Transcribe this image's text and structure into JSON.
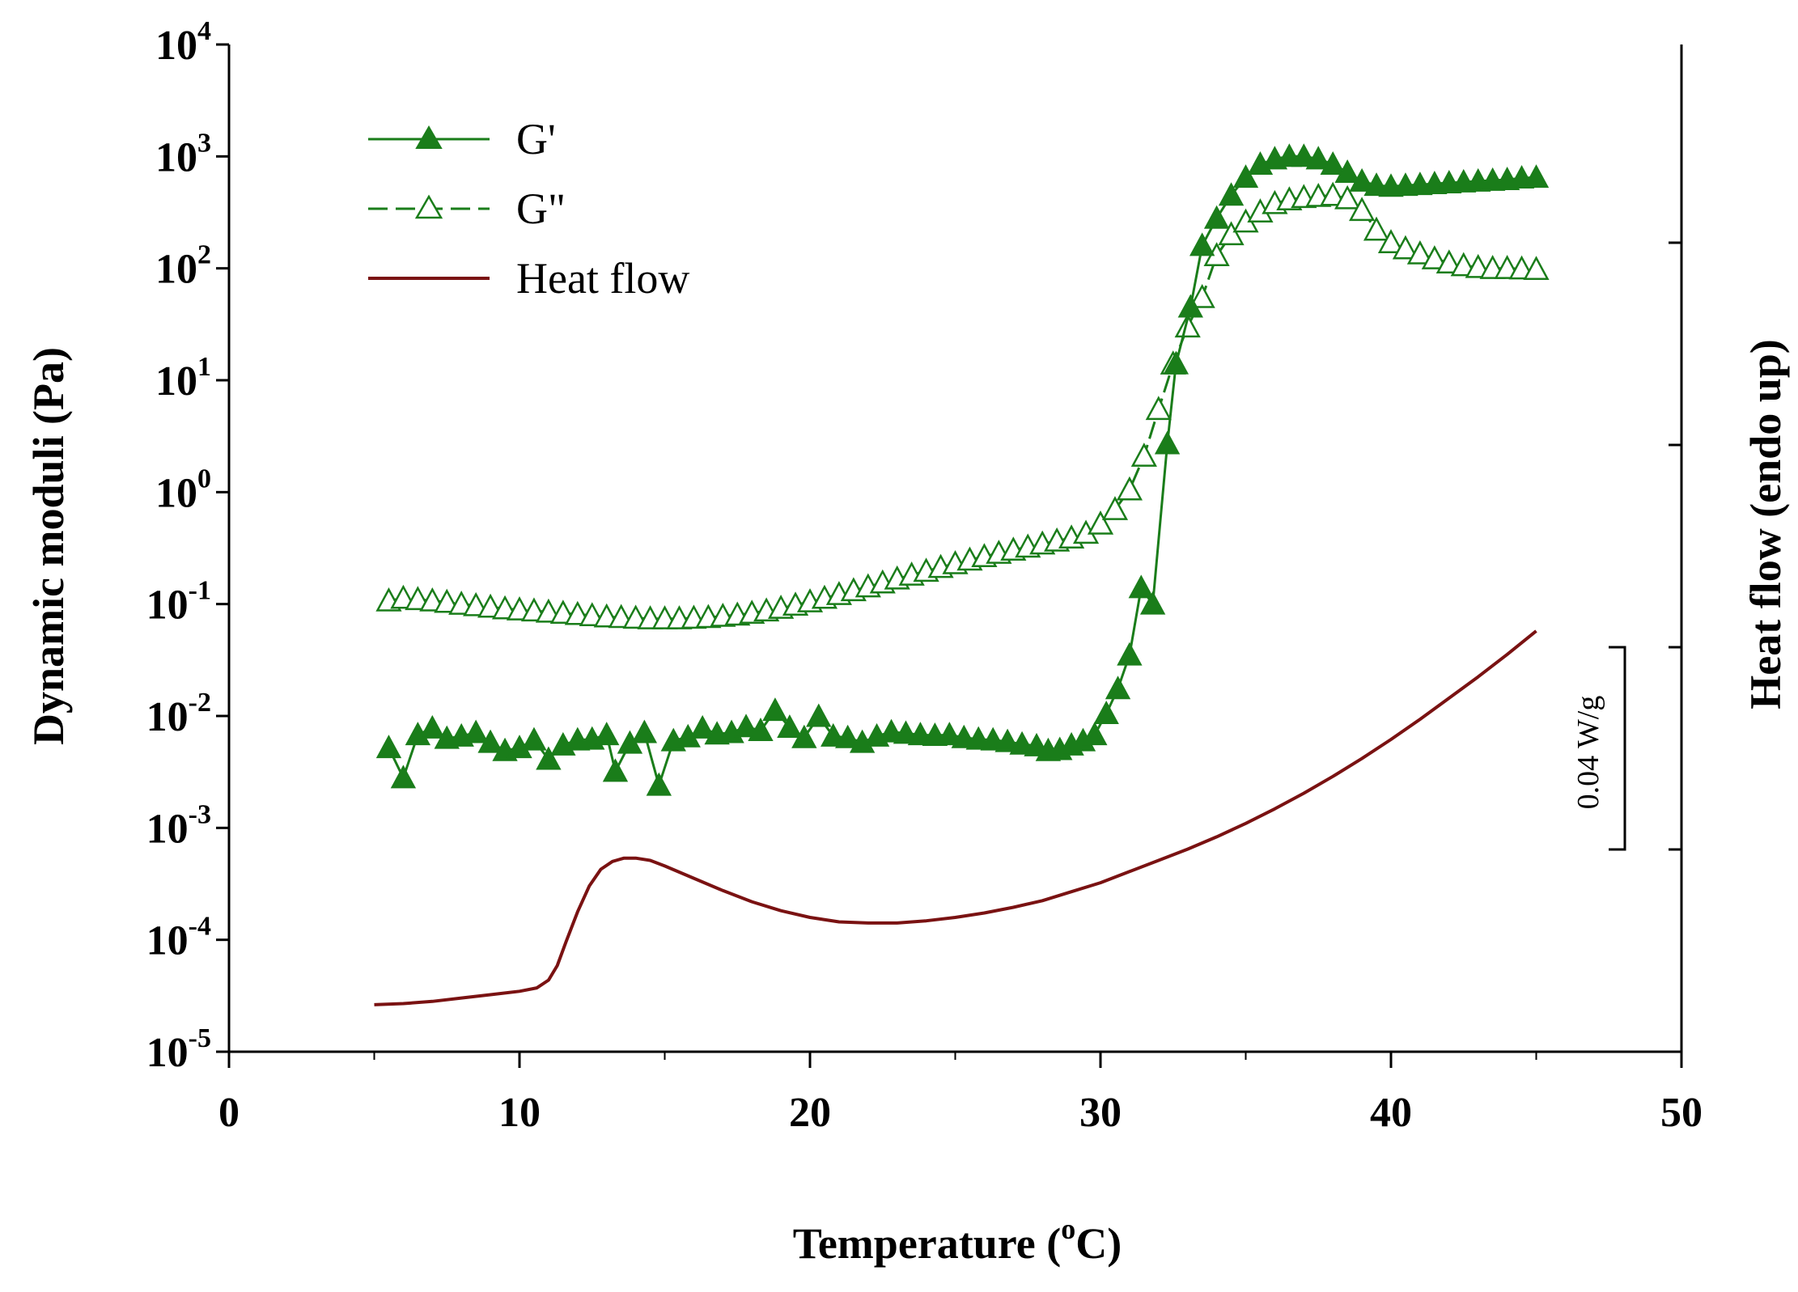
{
  "chart_data": {
    "type": "line",
    "title": "",
    "xlabel": "Temperature (",
    "xlabel_unit": "C)",
    "xlabel_degree": "o",
    "ylabel": "Dynamic moduli (Pa)",
    "y2label": "Heat flow (endo up)",
    "xlim": [
      0,
      50
    ],
    "x_ticks": [
      "0",
      "10",
      "20",
      "30",
      "40",
      "50"
    ],
    "y_scale": "log",
    "ylim_exponent": [
      -5,
      4
    ],
    "y_tick_base": "10",
    "y_tick_exponents": [
      "-5",
      "-4",
      "-3",
      "-2",
      "-1",
      "0",
      "1",
      "2",
      "3",
      "4"
    ],
    "scale_bar_label": "0.04 W/g",
    "colors": {
      "moduli": "#1a7d1a",
      "heat_flow": "#7a1212",
      "axis": "#000000"
    },
    "legend_position": "top-left",
    "series": [
      {
        "name": "G'",
        "marker": "filled-triangle",
        "line_style": "solid",
        "x": [
          5.5,
          6.0,
          6.5,
          7.0,
          7.5,
          8.0,
          8.5,
          9.0,
          9.5,
          10.0,
          10.5,
          11.0,
          11.5,
          12.0,
          12.5,
          13.0,
          13.3,
          13.8,
          14.3,
          14.8,
          15.3,
          15.8,
          16.3,
          16.8,
          17.3,
          17.8,
          18.3,
          18.8,
          19.3,
          19.8,
          20.3,
          20.8,
          21.3,
          21.8,
          22.3,
          22.8,
          23.3,
          23.8,
          24.3,
          24.8,
          25.3,
          25.8,
          26.3,
          26.8,
          27.3,
          27.8,
          28.2,
          28.6,
          29.0,
          29.4,
          29.8,
          30.2,
          30.6,
          31.0,
          31.4,
          31.8,
          32.3,
          32.6,
          33.1,
          33.5,
          34.0,
          34.5,
          35.0,
          35.5,
          36.0,
          36.5,
          37.0,
          37.5,
          38.0,
          38.5,
          39.0,
          39.5,
          40.0,
          40.5,
          41.0,
          41.5,
          42.0,
          42.5,
          43.0,
          43.5,
          44.0,
          44.5,
          45.0
        ],
        "y": [
          0.0052,
          0.0028,
          0.0068,
          0.0078,
          0.0063,
          0.0066,
          0.0071,
          0.0058,
          0.0049,
          0.0052,
          0.0061,
          0.0041,
          0.0055,
          0.0061,
          0.0062,
          0.0068,
          0.0032,
          0.0057,
          0.0071,
          0.0024,
          0.006,
          0.0065,
          0.0078,
          0.0069,
          0.0071,
          0.008,
          0.0074,
          0.0112,
          0.0079,
          0.0064,
          0.0099,
          0.0066,
          0.0064,
          0.0058,
          0.0066,
          0.0072,
          0.007,
          0.0068,
          0.0067,
          0.0068,
          0.0064,
          0.0062,
          0.0061,
          0.0059,
          0.0056,
          0.0054,
          0.0049,
          0.005,
          0.0055,
          0.006,
          0.0068,
          0.0105,
          0.0175,
          0.035,
          0.14,
          0.1,
          2.7,
          14,
          45,
          160,
          280,
          450,
          650,
          850,
          950,
          1000,
          1000,
          950,
          850,
          720,
          600,
          550,
          540,
          550,
          560,
          570,
          580,
          590,
          600,
          610,
          620,
          640,
          650
        ]
      },
      {
        "name": "G\"",
        "marker": "open-triangle",
        "line_style": "dashed",
        "x": [
          5.5,
          6.0,
          6.5,
          7.0,
          7.5,
          8.0,
          8.5,
          9.0,
          9.5,
          10.0,
          10.5,
          11.0,
          11.5,
          12.0,
          12.5,
          13.0,
          13.5,
          14.0,
          14.5,
          15.0,
          15.5,
          16.0,
          16.5,
          17.0,
          17.5,
          18.0,
          18.5,
          19.0,
          19.5,
          20.0,
          20.5,
          21.0,
          21.5,
          22.0,
          22.5,
          23.0,
          23.5,
          24.0,
          24.5,
          25.0,
          25.5,
          26.0,
          26.5,
          27.0,
          27.5,
          28.0,
          28.5,
          29.0,
          29.5,
          30.0,
          30.5,
          31.0,
          31.5,
          32.0,
          32.5,
          33.0,
          33.5,
          34.0,
          34.5,
          35.0,
          35.5,
          36.0,
          36.5,
          37.0,
          37.5,
          38.0,
          38.5,
          39.0,
          39.5,
          40.0,
          40.5,
          41.0,
          41.5,
          42.0,
          42.5,
          43.0,
          43.5,
          44.0,
          44.5,
          45.0
        ],
        "y": [
          0.107,
          0.113,
          0.11,
          0.107,
          0.104,
          0.1,
          0.097,
          0.094,
          0.091,
          0.089,
          0.087,
          0.085,
          0.083,
          0.081,
          0.079,
          0.077,
          0.076,
          0.075,
          0.074,
          0.074,
          0.074,
          0.075,
          0.076,
          0.078,
          0.08,
          0.083,
          0.087,
          0.092,
          0.098,
          0.105,
          0.113,
          0.122,
          0.132,
          0.143,
          0.155,
          0.168,
          0.182,
          0.197,
          0.213,
          0.23,
          0.248,
          0.266,
          0.285,
          0.304,
          0.324,
          0.345,
          0.367,
          0.39,
          0.43,
          0.52,
          0.7,
          1.05,
          2.1,
          5.5,
          14,
          30,
          55,
          130,
          200,
          260,
          320,
          380,
          410,
          430,
          440,
          450,
          420,
          330,
          220,
          170,
          150,
          135,
          122,
          112,
          106,
          102,
          100,
          100,
          99,
          98
        ]
      },
      {
        "name": "Heat flow",
        "marker": "none",
        "line_style": "solid",
        "x": [
          5.0,
          6.0,
          7.0,
          8.0,
          9.0,
          10.0,
          10.6,
          11.0,
          11.3,
          11.6,
          12.0,
          12.4,
          12.8,
          13.2,
          13.6,
          14.0,
          14.5,
          15.0,
          16.0,
          17.0,
          18.0,
          19.0,
          20.0,
          21.0,
          22.0,
          23.0,
          24.0,
          25.0,
          26.0,
          27.0,
          28.0,
          29.0,
          30.0,
          31.0,
          32.0,
          33.0,
          34.0,
          35.0,
          36.0,
          37.0,
          38.0,
          39.0,
          40.0,
          41.0,
          42.0,
          43.0,
          44.0,
          45.0
        ],
        "y": [
          -4.58,
          -4.57,
          -4.55,
          -4.52,
          -4.49,
          -4.46,
          -4.43,
          -4.36,
          -4.23,
          -4.02,
          -3.75,
          -3.52,
          -3.37,
          -3.3,
          -3.27,
          -3.27,
          -3.29,
          -3.34,
          -3.45,
          -3.56,
          -3.66,
          -3.74,
          -3.8,
          -3.84,
          -3.85,
          -3.85,
          -3.83,
          -3.8,
          -3.76,
          -3.71,
          -3.65,
          -3.57,
          -3.49,
          -3.39,
          -3.29,
          -3.19,
          -3.08,
          -2.96,
          -2.83,
          -2.69,
          -2.54,
          -2.38,
          -2.21,
          -2.03,
          -1.84,
          -1.65,
          -1.45,
          -1.24
        ]
      }
    ]
  }
}
